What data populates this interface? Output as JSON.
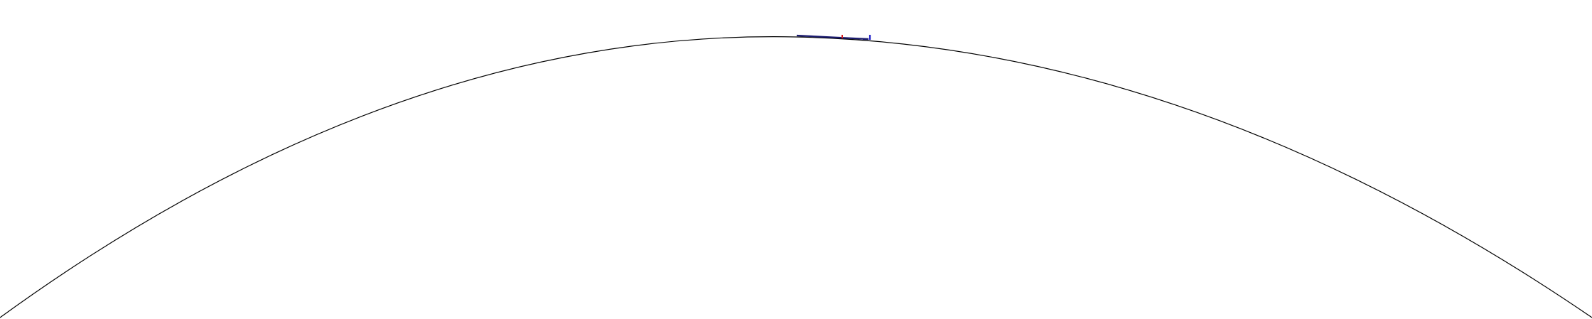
{
  "diagram": {
    "background_color": "#ffffff",
    "arc_color": "#000000",
    "markers": [
      {
        "name": "dark-blue-segment",
        "color": "#1a1a6e"
      },
      {
        "name": "red-tick",
        "color": "#d62020"
      },
      {
        "name": "blue-tick",
        "color": "#2020c8"
      }
    ]
  }
}
